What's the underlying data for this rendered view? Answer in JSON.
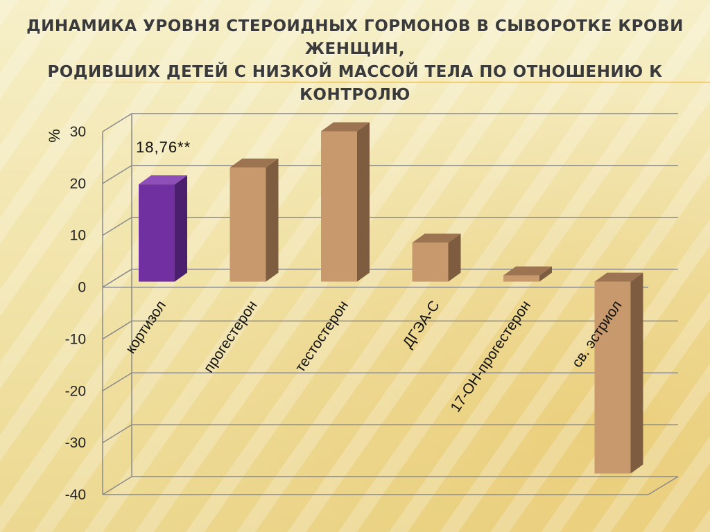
{
  "slide": {
    "title_line1": "ДИНАМИКА УРОВНЯ СТЕРОИДНЫХ ГОРМОНОВ В СЫВОРОТКЕ КРОВИ ЖЕНЩИН,",
    "title_line2": "РОДИВШИХ ДЕТЕЙ С НИЗКОЙ МАССОЙ ТЕЛА ПО ОТНОШЕНИЮ К КОНТРОЛЮ"
  },
  "chart_data": {
    "type": "bar",
    "title": "",
    "xlabel": "",
    "ylabel": "%",
    "ylim": [
      -40,
      30
    ],
    "yticks": [
      30,
      20,
      10,
      0,
      -10,
      -20,
      -30,
      -40
    ],
    "grid": true,
    "legend": "none",
    "style": "3d-column",
    "categories": [
      "кортизол",
      "прогестерон",
      "тестостерон",
      "ДГЭА-С",
      "17-ОН-прогестерон",
      "св. эстриол"
    ],
    "values": [
      18.76,
      22,
      29,
      7.5,
      1.2,
      -37
    ],
    "annotations": [
      {
        "category": "кортизол",
        "text": "18,76**"
      }
    ],
    "colors": {
      "highlight_front": "#7030a0",
      "highlight_side": "#4b1f6e",
      "highlight_top": "#8e50b8",
      "bar_front": "#c8996c",
      "bar_side": "#7d5c40",
      "bar_top": "#9c7452",
      "grid": "#8a8a8a"
    },
    "highlight_index": 0
  }
}
